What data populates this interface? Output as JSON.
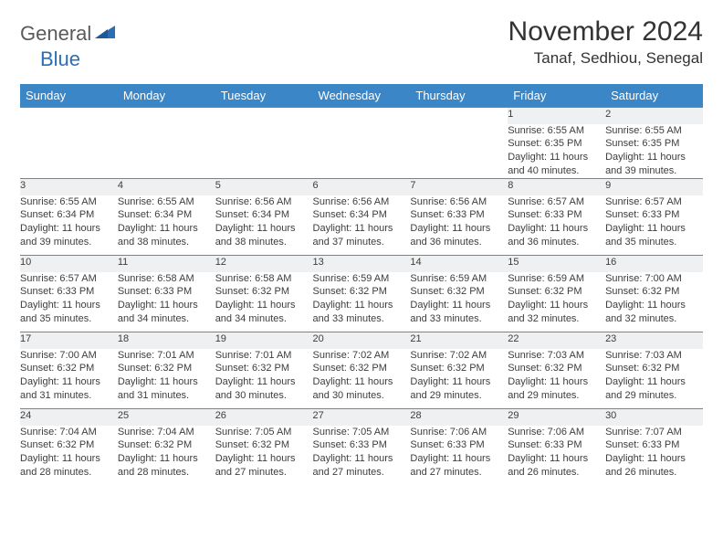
{
  "brand": {
    "part1": "General",
    "part2": "Blue"
  },
  "title": "November 2024",
  "location": "Tanaf, Sedhiou, Senegal",
  "colors": {
    "header_bg": "#3b86c6",
    "header_text": "#ffffff",
    "daynum_bg": "#eef0f1",
    "daynum_border": "#6b87a0",
    "body_text": "#3d3d3d",
    "brand_gray": "#5a5a5a",
    "brand_blue": "#2a6fb5"
  },
  "weekdays": [
    "Sunday",
    "Monday",
    "Tuesday",
    "Wednesday",
    "Thursday",
    "Friday",
    "Saturday"
  ],
  "weeks": [
    [
      null,
      null,
      null,
      null,
      null,
      {
        "n": "1",
        "sr": "Sunrise: 6:55 AM",
        "ss": "Sunset: 6:35 PM",
        "dl": "Daylight: 11 hours and 40 minutes."
      },
      {
        "n": "2",
        "sr": "Sunrise: 6:55 AM",
        "ss": "Sunset: 6:35 PM",
        "dl": "Daylight: 11 hours and 39 minutes."
      }
    ],
    [
      {
        "n": "3",
        "sr": "Sunrise: 6:55 AM",
        "ss": "Sunset: 6:34 PM",
        "dl": "Daylight: 11 hours and 39 minutes."
      },
      {
        "n": "4",
        "sr": "Sunrise: 6:55 AM",
        "ss": "Sunset: 6:34 PM",
        "dl": "Daylight: 11 hours and 38 minutes."
      },
      {
        "n": "5",
        "sr": "Sunrise: 6:56 AM",
        "ss": "Sunset: 6:34 PM",
        "dl": "Daylight: 11 hours and 38 minutes."
      },
      {
        "n": "6",
        "sr": "Sunrise: 6:56 AM",
        "ss": "Sunset: 6:34 PM",
        "dl": "Daylight: 11 hours and 37 minutes."
      },
      {
        "n": "7",
        "sr": "Sunrise: 6:56 AM",
        "ss": "Sunset: 6:33 PM",
        "dl": "Daylight: 11 hours and 36 minutes."
      },
      {
        "n": "8",
        "sr": "Sunrise: 6:57 AM",
        "ss": "Sunset: 6:33 PM",
        "dl": "Daylight: 11 hours and 36 minutes."
      },
      {
        "n": "9",
        "sr": "Sunrise: 6:57 AM",
        "ss": "Sunset: 6:33 PM",
        "dl": "Daylight: 11 hours and 35 minutes."
      }
    ],
    [
      {
        "n": "10",
        "sr": "Sunrise: 6:57 AM",
        "ss": "Sunset: 6:33 PM",
        "dl": "Daylight: 11 hours and 35 minutes."
      },
      {
        "n": "11",
        "sr": "Sunrise: 6:58 AM",
        "ss": "Sunset: 6:33 PM",
        "dl": "Daylight: 11 hours and 34 minutes."
      },
      {
        "n": "12",
        "sr": "Sunrise: 6:58 AM",
        "ss": "Sunset: 6:32 PM",
        "dl": "Daylight: 11 hours and 34 minutes."
      },
      {
        "n": "13",
        "sr": "Sunrise: 6:59 AM",
        "ss": "Sunset: 6:32 PM",
        "dl": "Daylight: 11 hours and 33 minutes."
      },
      {
        "n": "14",
        "sr": "Sunrise: 6:59 AM",
        "ss": "Sunset: 6:32 PM",
        "dl": "Daylight: 11 hours and 33 minutes."
      },
      {
        "n": "15",
        "sr": "Sunrise: 6:59 AM",
        "ss": "Sunset: 6:32 PM",
        "dl": "Daylight: 11 hours and 32 minutes."
      },
      {
        "n": "16",
        "sr": "Sunrise: 7:00 AM",
        "ss": "Sunset: 6:32 PM",
        "dl": "Daylight: 11 hours and 32 minutes."
      }
    ],
    [
      {
        "n": "17",
        "sr": "Sunrise: 7:00 AM",
        "ss": "Sunset: 6:32 PM",
        "dl": "Daylight: 11 hours and 31 minutes."
      },
      {
        "n": "18",
        "sr": "Sunrise: 7:01 AM",
        "ss": "Sunset: 6:32 PM",
        "dl": "Daylight: 11 hours and 31 minutes."
      },
      {
        "n": "19",
        "sr": "Sunrise: 7:01 AM",
        "ss": "Sunset: 6:32 PM",
        "dl": "Daylight: 11 hours and 30 minutes."
      },
      {
        "n": "20",
        "sr": "Sunrise: 7:02 AM",
        "ss": "Sunset: 6:32 PM",
        "dl": "Daylight: 11 hours and 30 minutes."
      },
      {
        "n": "21",
        "sr": "Sunrise: 7:02 AM",
        "ss": "Sunset: 6:32 PM",
        "dl": "Daylight: 11 hours and 29 minutes."
      },
      {
        "n": "22",
        "sr": "Sunrise: 7:03 AM",
        "ss": "Sunset: 6:32 PM",
        "dl": "Daylight: 11 hours and 29 minutes."
      },
      {
        "n": "23",
        "sr": "Sunrise: 7:03 AM",
        "ss": "Sunset: 6:32 PM",
        "dl": "Daylight: 11 hours and 29 minutes."
      }
    ],
    [
      {
        "n": "24",
        "sr": "Sunrise: 7:04 AM",
        "ss": "Sunset: 6:32 PM",
        "dl": "Daylight: 11 hours and 28 minutes."
      },
      {
        "n": "25",
        "sr": "Sunrise: 7:04 AM",
        "ss": "Sunset: 6:32 PM",
        "dl": "Daylight: 11 hours and 28 minutes."
      },
      {
        "n": "26",
        "sr": "Sunrise: 7:05 AM",
        "ss": "Sunset: 6:32 PM",
        "dl": "Daylight: 11 hours and 27 minutes."
      },
      {
        "n": "27",
        "sr": "Sunrise: 7:05 AM",
        "ss": "Sunset: 6:33 PM",
        "dl": "Daylight: 11 hours and 27 minutes."
      },
      {
        "n": "28",
        "sr": "Sunrise: 7:06 AM",
        "ss": "Sunset: 6:33 PM",
        "dl": "Daylight: 11 hours and 27 minutes."
      },
      {
        "n": "29",
        "sr": "Sunrise: 7:06 AM",
        "ss": "Sunset: 6:33 PM",
        "dl": "Daylight: 11 hours and 26 minutes."
      },
      {
        "n": "30",
        "sr": "Sunrise: 7:07 AM",
        "ss": "Sunset: 6:33 PM",
        "dl": "Daylight: 11 hours and 26 minutes."
      }
    ]
  ]
}
